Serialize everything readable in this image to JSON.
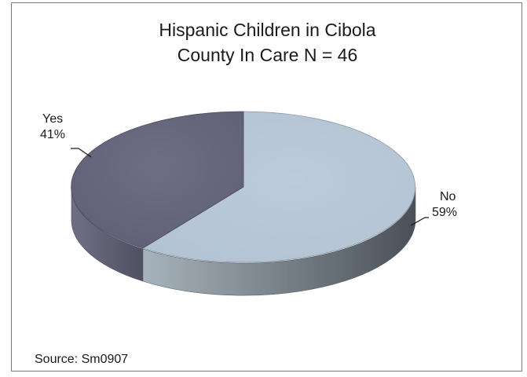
{
  "chart_data": {
    "type": "pie",
    "title_line1": "Hispanic Children in Cibola",
    "title_line2": "County In Care N = 46",
    "slices": [
      {
        "name": "No",
        "pct_label": "59%",
        "value": 59,
        "color": "#b9cad9"
      },
      {
        "name": "Yes",
        "pct_label": "41%",
        "value": 41,
        "color": "#6a6b80"
      }
    ],
    "source": "Source: Sm0907"
  }
}
